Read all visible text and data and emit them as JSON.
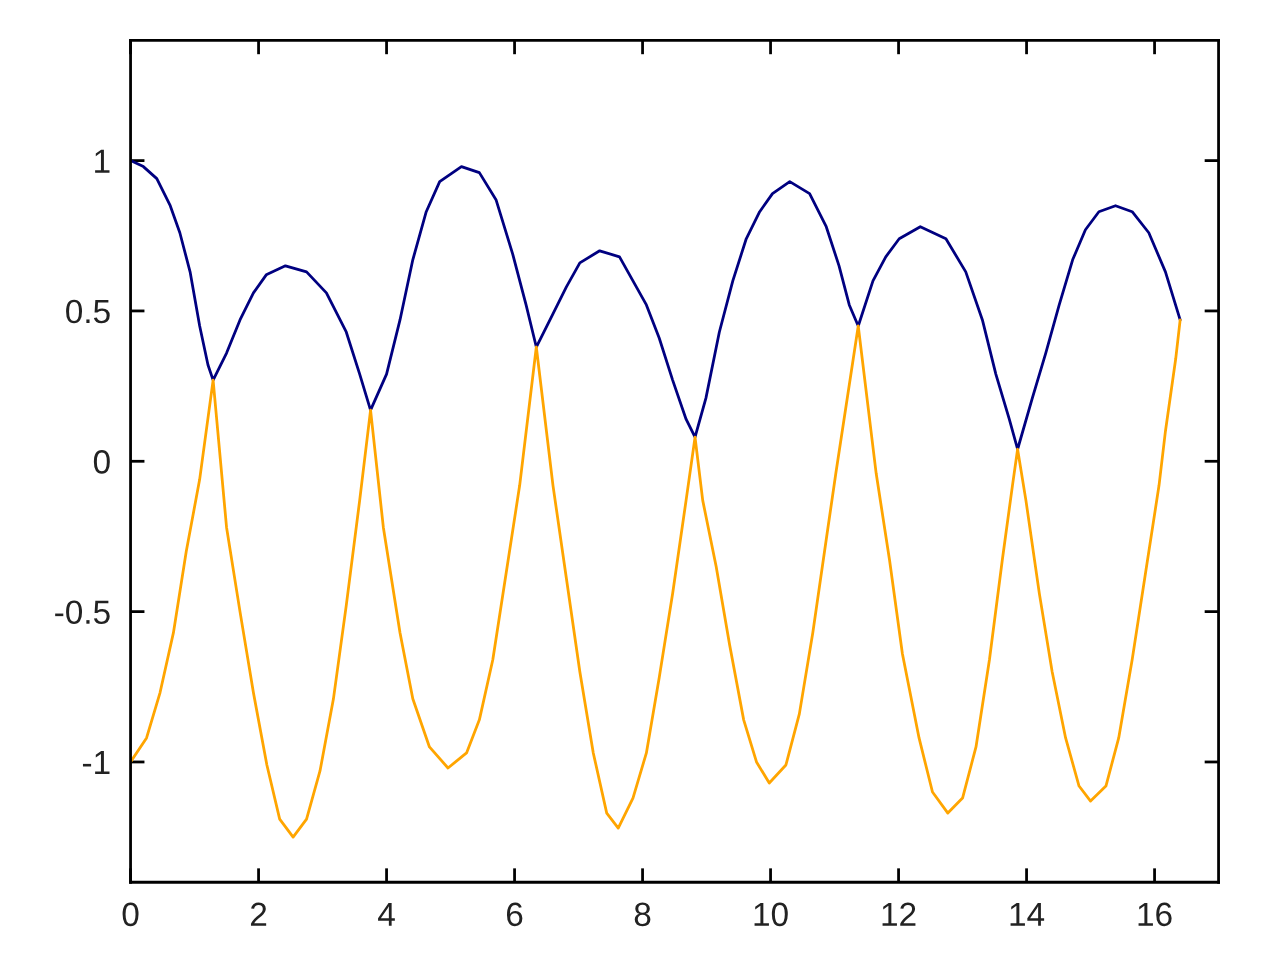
{
  "chart_data": {
    "type": "line",
    "xlim": [
      0,
      17
    ],
    "ylim": [
      -1.4,
      1.4
    ],
    "xticks": [
      0,
      2,
      4,
      6,
      8,
      10,
      12,
      14,
      16
    ],
    "yticks": [
      -1,
      -0.5,
      0,
      0.5,
      1
    ],
    "series": [
      {
        "color": "#000080",
        "x": [
          0,
          0.2,
          0.41,
          0.62,
          0.77,
          0.93,
          1.08,
          1.21,
          1.29,
          1.5,
          1.71,
          1.92,
          2.12,
          2.42,
          2.75,
          3.06,
          3.37,
          3.58,
          3.75,
          4.0,
          4.21,
          4.41,
          4.62,
          4.83,
          5.17,
          5.45,
          5.71,
          5.97,
          6.18,
          6.34,
          6.6,
          6.81,
          7.02,
          7.33,
          7.64,
          7.85,
          8.06,
          8.26,
          8.47,
          8.68,
          8.82,
          8.99,
          9.2,
          9.41,
          9.62,
          9.83,
          10.03,
          10.3,
          10.61,
          10.87,
          11.07,
          11.23,
          11.37,
          11.6,
          11.8,
          12.01,
          12.34,
          12.74,
          13.05,
          13.31,
          13.52,
          13.73,
          13.86,
          14.09,
          14.3,
          14.51,
          14.72,
          14.92,
          15.13,
          15.39,
          15.65,
          15.91,
          16.17,
          16.4
        ],
        "values": [
          1.0,
          0.98,
          0.94,
          0.85,
          0.76,
          0.63,
          0.45,
          0.32,
          0.27,
          0.36,
          0.47,
          0.56,
          0.62,
          0.65,
          0.63,
          0.56,
          0.43,
          0.29,
          0.17,
          0.29,
          0.47,
          0.67,
          0.83,
          0.93,
          0.98,
          0.96,
          0.87,
          0.69,
          0.52,
          0.38,
          0.49,
          0.58,
          0.66,
          0.7,
          0.68,
          0.6,
          0.52,
          0.41,
          0.27,
          0.14,
          0.08,
          0.21,
          0.43,
          0.6,
          0.74,
          0.83,
          0.89,
          0.93,
          0.89,
          0.78,
          0.65,
          0.52,
          0.45,
          0.6,
          0.68,
          0.74,
          0.78,
          0.74,
          0.63,
          0.47,
          0.29,
          0.14,
          0.04,
          0.21,
          0.36,
          0.52,
          0.67,
          0.77,
          0.83,
          0.85,
          0.83,
          0.76,
          0.63,
          0.47
        ]
      },
      {
        "color": "#ffa500",
        "x": [
          0,
          0.25,
          0.46,
          0.67,
          0.87,
          1.08,
          1.29,
          1.5,
          1.71,
          1.92,
          2.13,
          2.33,
          2.54,
          2.75,
          2.96,
          3.17,
          3.37,
          3.58,
          3.75,
          3.95,
          4.21,
          4.41,
          4.67,
          4.96,
          5.25,
          5.45,
          5.66,
          5.87,
          6.08,
          6.34,
          6.6,
          6.81,
          7.02,
          7.23,
          7.44,
          7.62,
          7.85,
          8.06,
          8.26,
          8.47,
          8.68,
          8.82,
          8.94,
          9.15,
          9.36,
          9.58,
          9.78,
          9.98,
          10.24,
          10.45,
          10.66,
          10.87,
          11.02,
          11.37,
          11.65,
          11.86,
          12.06,
          12.32,
          12.53,
          12.77,
          13.0,
          13.21,
          13.42,
          13.62,
          13.78,
          13.86,
          13.99,
          14.2,
          14.4,
          14.61,
          14.82,
          15.0,
          15.24,
          15.44,
          15.65,
          15.86,
          16.07,
          16.17,
          16.33,
          16.4
        ],
        "values": [
          -1.0,
          -0.92,
          -0.77,
          -0.57,
          -0.3,
          -0.06,
          0.27,
          -0.22,
          -0.5,
          -0.77,
          -1.01,
          -1.19,
          -1.25,
          -1.19,
          -1.03,
          -0.79,
          -0.48,
          -0.13,
          0.17,
          -0.22,
          -0.57,
          -0.79,
          -0.95,
          -1.02,
          -0.97,
          -0.86,
          -0.66,
          -0.37,
          -0.08,
          0.38,
          -0.08,
          -0.39,
          -0.7,
          -0.97,
          -1.17,
          -1.22,
          -1.12,
          -0.97,
          -0.72,
          -0.44,
          -0.13,
          0.08,
          -0.13,
          -0.35,
          -0.61,
          -0.86,
          -1.0,
          -1.07,
          -1.01,
          -0.84,
          -0.57,
          -0.26,
          -0.04,
          0.45,
          -0.04,
          -0.33,
          -0.64,
          -0.92,
          -1.1,
          -1.17,
          -1.12,
          -0.95,
          -0.66,
          -0.33,
          -0.08,
          0.04,
          -0.13,
          -0.44,
          -0.7,
          -0.92,
          -1.08,
          -1.13,
          -1.08,
          -0.92,
          -0.66,
          -0.37,
          -0.08,
          0.1,
          0.34,
          0.47
        ]
      }
    ]
  }
}
